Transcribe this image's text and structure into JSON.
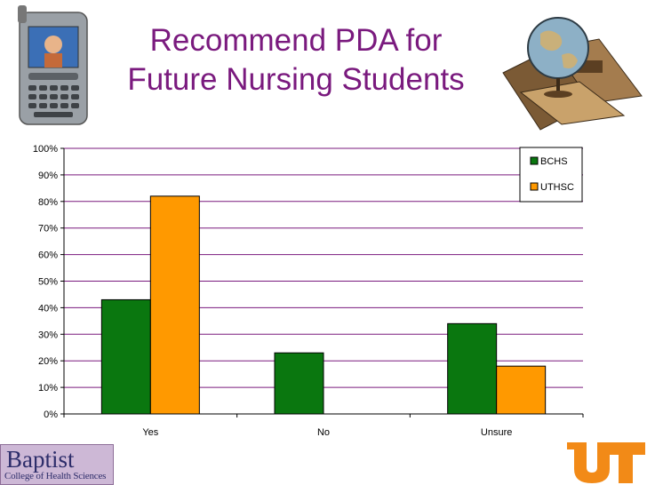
{
  "slide": {
    "title_line1": "Recommend PDA for",
    "title_line2": "Future Nursing Students",
    "logo_baptist_main": "Baptist",
    "logo_baptist_sub": "College of Health Sciences",
    "colors": {
      "title": "#7a1a7e",
      "ut_orange": "#f28a17"
    }
  },
  "chart_data": {
    "type": "bar",
    "categories": [
      "Yes",
      "No",
      "Unsure"
    ],
    "series": [
      {
        "name": "BCHS",
        "color": "#0a770f",
        "values": [
          43,
          23,
          34
        ]
      },
      {
        "name": "UTHSC",
        "color": "#ff9900",
        "values": [
          82,
          0,
          18
        ]
      }
    ],
    "y_ticks": [
      "0%",
      "10%",
      "20%",
      "30%",
      "40%",
      "50%",
      "60%",
      "70%",
      "80%",
      "90%",
      "100%"
    ],
    "ylim": [
      0,
      100
    ],
    "grid": true,
    "gridline_color": "#7a1a7e",
    "legend_position": "top-right"
  }
}
